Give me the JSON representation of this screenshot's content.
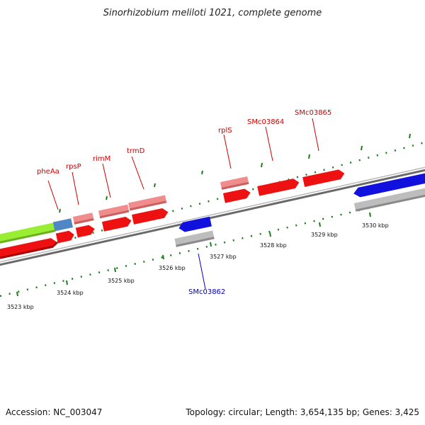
{
  "title": "Sinorhizobium meliloti 1021, complete genome",
  "footer": {
    "accession": "Accession: NC_003047",
    "summary": "Topology: circular; Length: 3,654,135 bp; Genes: 3,425"
  },
  "colors": {
    "forward_cds": "#ee1111",
    "forward_rna": "#f08c8c",
    "reverse_cds": "#1111dd",
    "reverse_rna": "#bdbdbd",
    "green_feature": "#99ee33",
    "steelblue_feature": "#4f86c6",
    "backbone": "#888888",
    "ticks": "#1d7d1d",
    "forward_label": "#cc0000",
    "reverse_label": "#0000bb"
  },
  "kbp_labels": [
    "3523 kbp",
    "3524 kbp",
    "3525 kbp",
    "3526 kbp",
    "3527 kbp",
    "3528 kbp",
    "3529 kbp",
    "3530 kbp"
  ],
  "gene_labels": {
    "forward": [
      "pheAa",
      "rpsP",
      "rimM",
      "trmD",
      "rplS",
      "SMc03864",
      "SMc03865"
    ],
    "reverse": [
      "SMc03862"
    ]
  }
}
